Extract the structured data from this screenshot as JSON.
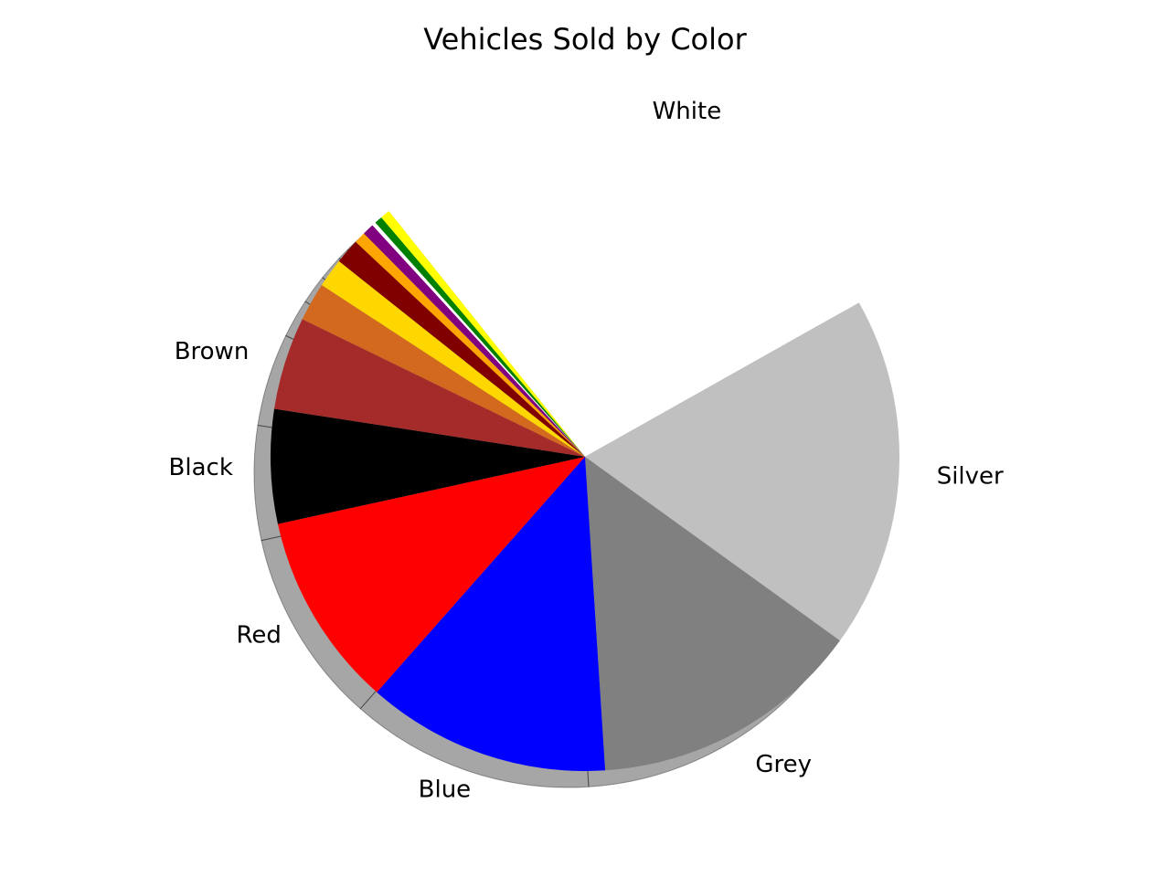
{
  "chart_data": {
    "type": "pie",
    "title": "Vehicles Sold by Color",
    "start_angle_deg": 128.6,
    "direction": "clockwise",
    "shadow": true,
    "slices": [
      {
        "label": "White",
        "value": 27.7,
        "color": "#ffffff"
      },
      {
        "label": "Silver",
        "value": 18.2,
        "color": "#c0c0c0"
      },
      {
        "label": "Grey",
        "value": 14.1,
        "color": "#808080"
      },
      {
        "label": "Blue",
        "value": 12.6,
        "color": "#0000ff"
      },
      {
        "label": "Red",
        "value": 10.1,
        "color": "#ff0000"
      },
      {
        "label": "Black",
        "value": 5.9,
        "color": "#000000"
      },
      {
        "label": "Brown",
        "value": 4.8,
        "color": "#a52a2a"
      },
      {
        "label": "",
        "value": 2.0,
        "color": "#d2691e"
      },
      {
        "label": "",
        "value": 1.5,
        "color": "#ffd700"
      },
      {
        "label": "",
        "value": 1.3,
        "color": "#800000"
      },
      {
        "label": "",
        "value": 0.6,
        "color": "#ffa500"
      },
      {
        "label": "",
        "value": 0.6,
        "color": "#800080"
      },
      {
        "label": "",
        "value": 0.2,
        "color": "#ffffff"
      },
      {
        "label": "",
        "value": 0.4,
        "color": "#008000"
      },
      {
        "label": "",
        "value": 0.5,
        "color": "#ffff00"
      }
    ]
  }
}
